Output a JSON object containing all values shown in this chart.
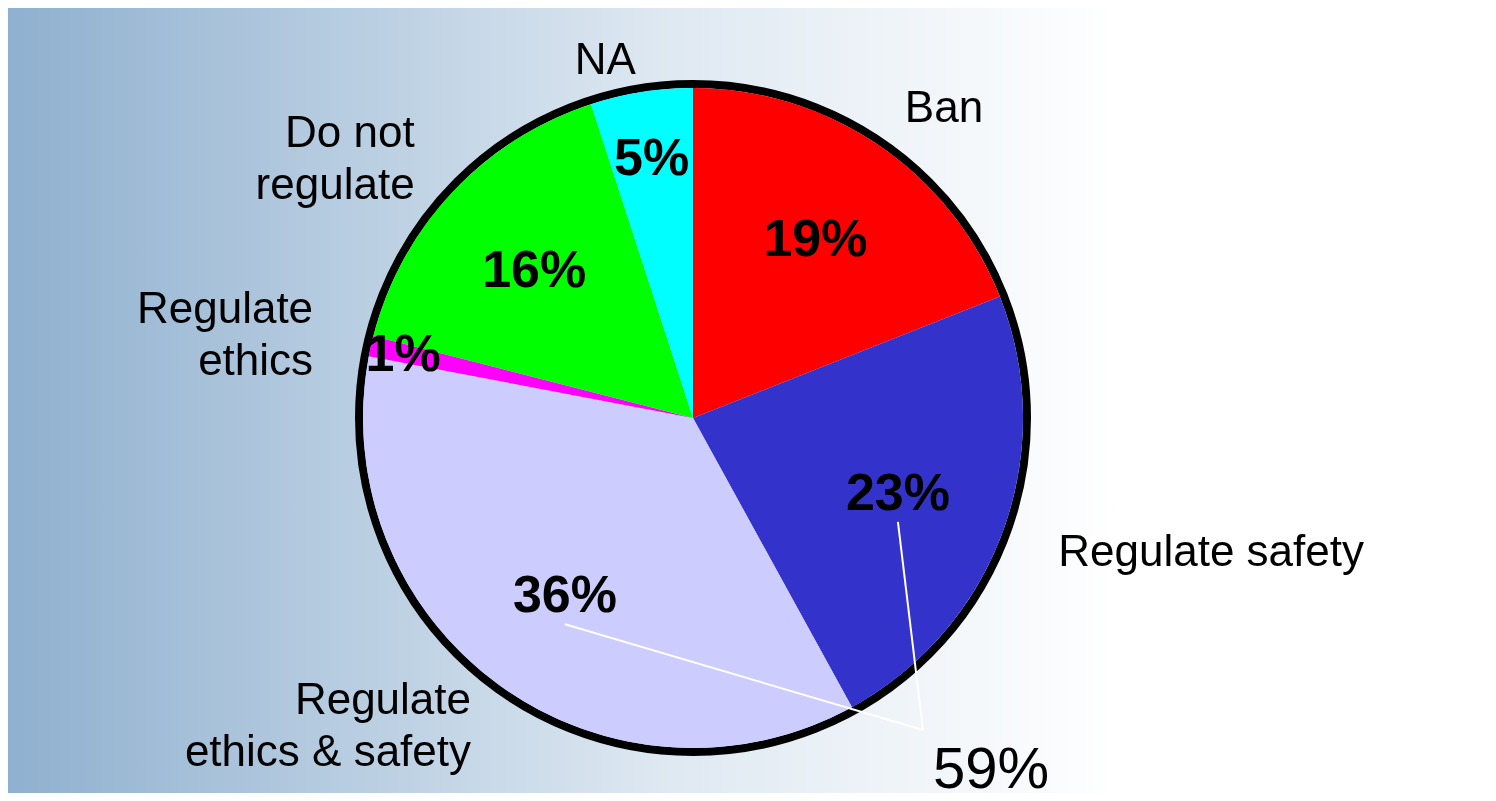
{
  "chart_data": {
    "type": "pie",
    "categories": [
      "Ban",
      "Regulate safety",
      "Regulate ethics & safety",
      "Regulate ethics",
      "Do not regulate",
      "NA"
    ],
    "values": [
      19,
      23,
      36,
      1,
      16,
      5
    ],
    "colors": [
      "#ff0000",
      "#3333cc",
      "#ccccff",
      "#ff00ff",
      "#00ff00",
      "#00ffff"
    ],
    "value_labels": [
      "19%",
      "23%",
      "36%",
      "1%",
      "16%",
      "5%"
    ],
    "annotations": [
      "59%"
    ]
  }
}
